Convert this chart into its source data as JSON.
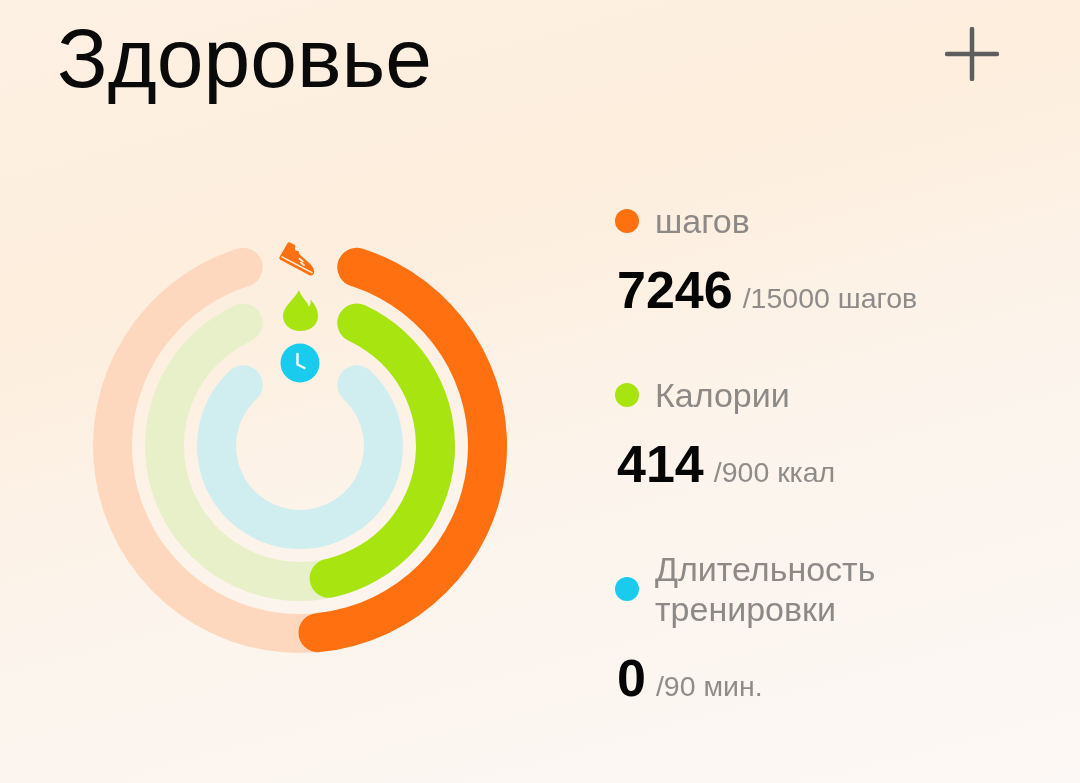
{
  "chart_data": {
    "type": "other",
    "title": "Здоровье",
    "categories": [
      "шагов",
      "Калории",
      "Длительность тренировки"
    ],
    "series": [
      {
        "values": [
          7246,
          414,
          0
        ],
        "colors": [
          "#ff7010",
          "#a8e40f",
          "#19cbec"
        ],
        "value_labels": [
          "7246",
          "414",
          "0"
        ]
      },
      {
        "values": [
          15000,
          900,
          90
        ],
        "colors": [
          "#fdd8be",
          "#e8f0c9",
          "#d0edef"
        ],
        "value_labels": [
          "/15000 шагов",
          "/900 ккал",
          "/90 мин."
        ]
      }
    ]
  }
}
